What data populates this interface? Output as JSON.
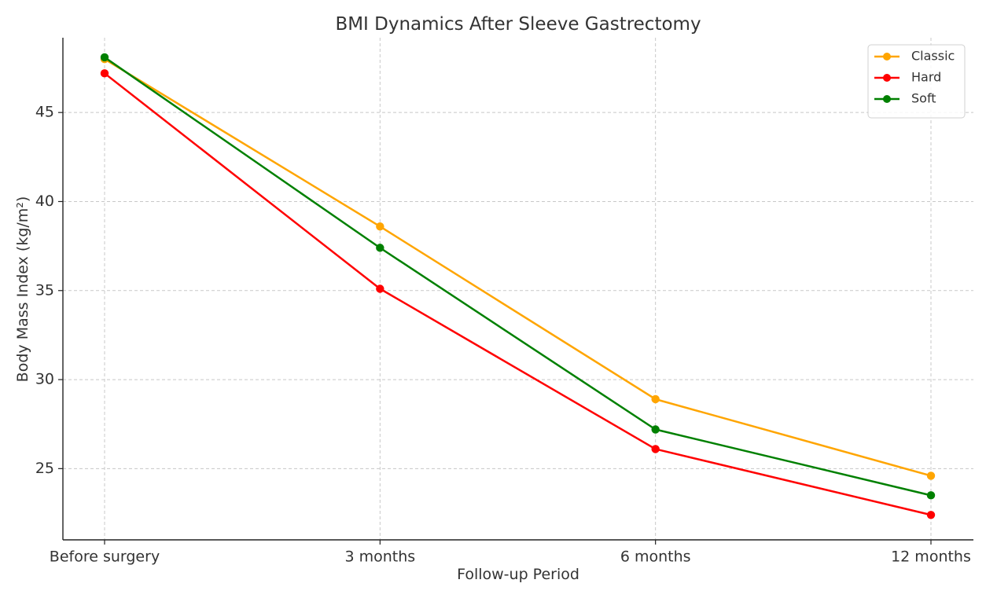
{
  "chart_data": {
    "type": "line",
    "title": "BMI Dynamics After Sleeve Gastrectomy",
    "xlabel": "Follow-up Period",
    "ylabel": "Body Mass Index (kg/m²)",
    "categories": [
      "Before surgery",
      "3 months",
      "6 months",
      "12 months"
    ],
    "ylim": [
      21.0,
      49.2
    ],
    "yticks": [
      25,
      30,
      35,
      40,
      45
    ],
    "grid": true,
    "legend_position": "top-right",
    "series": [
      {
        "name": "Classic",
        "color": "#ffa500",
        "values": [
          48.0,
          38.6,
          28.9,
          24.6
        ]
      },
      {
        "name": "Hard",
        "color": "#ff0000",
        "values": [
          47.2,
          35.1,
          26.1,
          22.4
        ]
      },
      {
        "name": "Soft",
        "color": "#008000",
        "values": [
          48.1,
          37.4,
          27.2,
          23.5
        ]
      }
    ]
  }
}
